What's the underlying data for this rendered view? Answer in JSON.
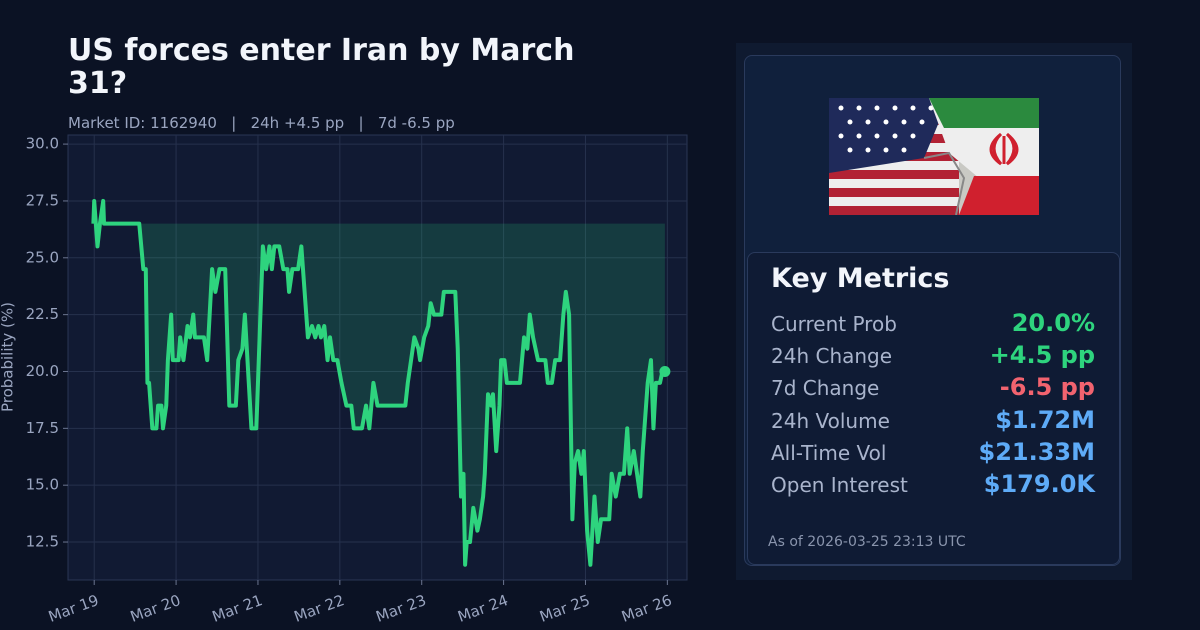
{
  "title": "US forces enter Iran by March 31?",
  "subtitle": "Market ID: 1162940   |   24h +4.5 pp   |   7d -6.5 pp",
  "chart_data": {
    "type": "line",
    "ylabel": "Probability (%)",
    "xlim": [
      18.68,
      26.24
    ],
    "ylim": [
      10.83,
      30.4
    ],
    "xticks": [
      {
        "value": 19,
        "label": "Mar 19"
      },
      {
        "value": 20,
        "label": "Mar 20"
      },
      {
        "value": 21,
        "label": "Mar 21"
      },
      {
        "value": 22,
        "label": "Mar 22"
      },
      {
        "value": 23,
        "label": "Mar 23"
      },
      {
        "value": 24,
        "label": "Mar 24"
      },
      {
        "value": 25,
        "label": "Mar 25"
      },
      {
        "value": 26,
        "label": "Mar 26"
      }
    ],
    "yticks": [
      {
        "value": 12.5,
        "label": "12.5"
      },
      {
        "value": 15,
        "label": "15.0"
      },
      {
        "value": 17.5,
        "label": "17.5"
      },
      {
        "value": 20,
        "label": "20.0"
      },
      {
        "value": 22.5,
        "label": "22.5"
      },
      {
        "value": 25,
        "label": "25.0"
      },
      {
        "value": 27.5,
        "label": "27.5"
      },
      {
        "value": 30,
        "label": "30.0"
      }
    ],
    "grid": true,
    "series": [
      {
        "color": "#2ed47e",
        "x": [
          18.99,
          19.0,
          19.04,
          19.07,
          19.11,
          19.12,
          19.55,
          19.6,
          19.63,
          19.65,
          19.67,
          19.71,
          19.76,
          19.78,
          19.82,
          19.84,
          19.88,
          19.9,
          19.94,
          19.96,
          20.03,
          20.05,
          20.09,
          20.14,
          20.17,
          20.21,
          20.23,
          20.34,
          20.38,
          20.44,
          20.48,
          20.53,
          20.6,
          20.65,
          20.73,
          20.76,
          20.81,
          20.84,
          20.88,
          20.92,
          20.98,
          21.06,
          21.1,
          21.14,
          21.17,
          21.2,
          21.26,
          21.31,
          21.36,
          21.38,
          21.42,
          21.49,
          21.53,
          21.59,
          21.61,
          21.66,
          21.7,
          21.74,
          21.77,
          21.81,
          21.85,
          21.88,
          21.92,
          21.97,
          22.02,
          22.08,
          22.14,
          22.17,
          22.27,
          22.32,
          22.36,
          22.41,
          22.46,
          22.8,
          22.83,
          22.87,
          22.91,
          22.96,
          22.98,
          23.03,
          23.08,
          23.11,
          23.15,
          23.24,
          23.27,
          23.41,
          23.44,
          23.48,
          23.51,
          23.53,
          23.55,
          23.59,
          23.63,
          23.68,
          23.71,
          23.75,
          23.77,
          23.81,
          23.85,
          23.87,
          23.91,
          23.95,
          23.97,
          24.01,
          24.04,
          24.2,
          24.25,
          24.29,
          24.32,
          24.36,
          24.42,
          24.51,
          24.54,
          24.59,
          24.63,
          24.69,
          24.73,
          24.76,
          24.8,
          24.84,
          24.87,
          24.91,
          24.95,
          24.98,
          25.02,
          25.06,
          25.11,
          25.15,
          25.19,
          25.29,
          25.32,
          25.37,
          25.42,
          25.47,
          25.51,
          25.54,
          25.59,
          25.63,
          25.67,
          25.7,
          25.74,
          25.76,
          25.8,
          25.83,
          25.86,
          25.91,
          25.94,
          25.97
        ],
        "values": [
          26.5,
          27.5,
          25.5,
          26.5,
          27.5,
          26.5,
          26.5,
          24.5,
          24.5,
          19.5,
          19.5,
          17.5,
          17.5,
          18.5,
          18.5,
          17.5,
          18.5,
          20.5,
          22.5,
          20.5,
          20.5,
          21.5,
          20.5,
          22.0,
          21.5,
          22.5,
          21.5,
          21.5,
          20.5,
          24.5,
          23.5,
          24.5,
          24.5,
          18.5,
          18.5,
          20.5,
          21.0,
          22.5,
          20.0,
          17.5,
          17.5,
          25.5,
          24.5,
          25.5,
          24.5,
          25.5,
          25.5,
          24.5,
          24.5,
          23.5,
          24.5,
          24.5,
          25.5,
          22.5,
          21.5,
          22.0,
          21.5,
          22.0,
          21.5,
          22.0,
          20.5,
          21.5,
          20.5,
          20.5,
          19.5,
          18.5,
          18.5,
          17.5,
          17.5,
          18.5,
          17.5,
          19.5,
          18.5,
          18.5,
          19.5,
          20.5,
          21.5,
          21.0,
          20.5,
          21.5,
          22.0,
          23.0,
          22.5,
          22.5,
          23.5,
          23.5,
          21.0,
          14.5,
          15.5,
          11.5,
          12.5,
          12.5,
          14.0,
          13.0,
          13.5,
          14.5,
          15.5,
          19.0,
          18.5,
          19.0,
          16.5,
          18.5,
          20.5,
          20.5,
          19.5,
          19.5,
          21.5,
          21.0,
          22.5,
          21.5,
          20.5,
          20.5,
          19.5,
          19.5,
          20.5,
          20.5,
          22.5,
          23.5,
          22.5,
          13.5,
          16.0,
          16.5,
          15.5,
          16.5,
          13.0,
          11.5,
          14.5,
          12.5,
          13.5,
          13.5,
          15.5,
          14.5,
          15.5,
          15.5,
          17.5,
          15.5,
          16.5,
          15.5,
          14.5,
          16.5,
          18.5,
          19.5,
          20.5,
          17.5,
          19.5,
          19.5,
          20.0,
          20.0
        ]
      }
    ]
  },
  "panel": {
    "title": "Key Metrics",
    "metrics": [
      {
        "label": "Current Prob",
        "value": "20.0%",
        "color": "#2ed47e"
      },
      {
        "label": "24h Change",
        "value": "+4.5 pp",
        "color": "#2ed47e"
      },
      {
        "label": "7d Change",
        "value": "-6.5 pp",
        "color": "#f2636f"
      },
      {
        "label": "24h Volume",
        "value": "$1.72M",
        "color": "#5eabf7"
      },
      {
        "label": "All-Time Vol",
        "value": "$21.33M",
        "color": "#5eabf7"
      },
      {
        "label": "Open Interest",
        "value": "$179.0K",
        "color": "#5eabf7"
      }
    ],
    "as_of": "As of 2026-03-25 23:13 UTC"
  }
}
